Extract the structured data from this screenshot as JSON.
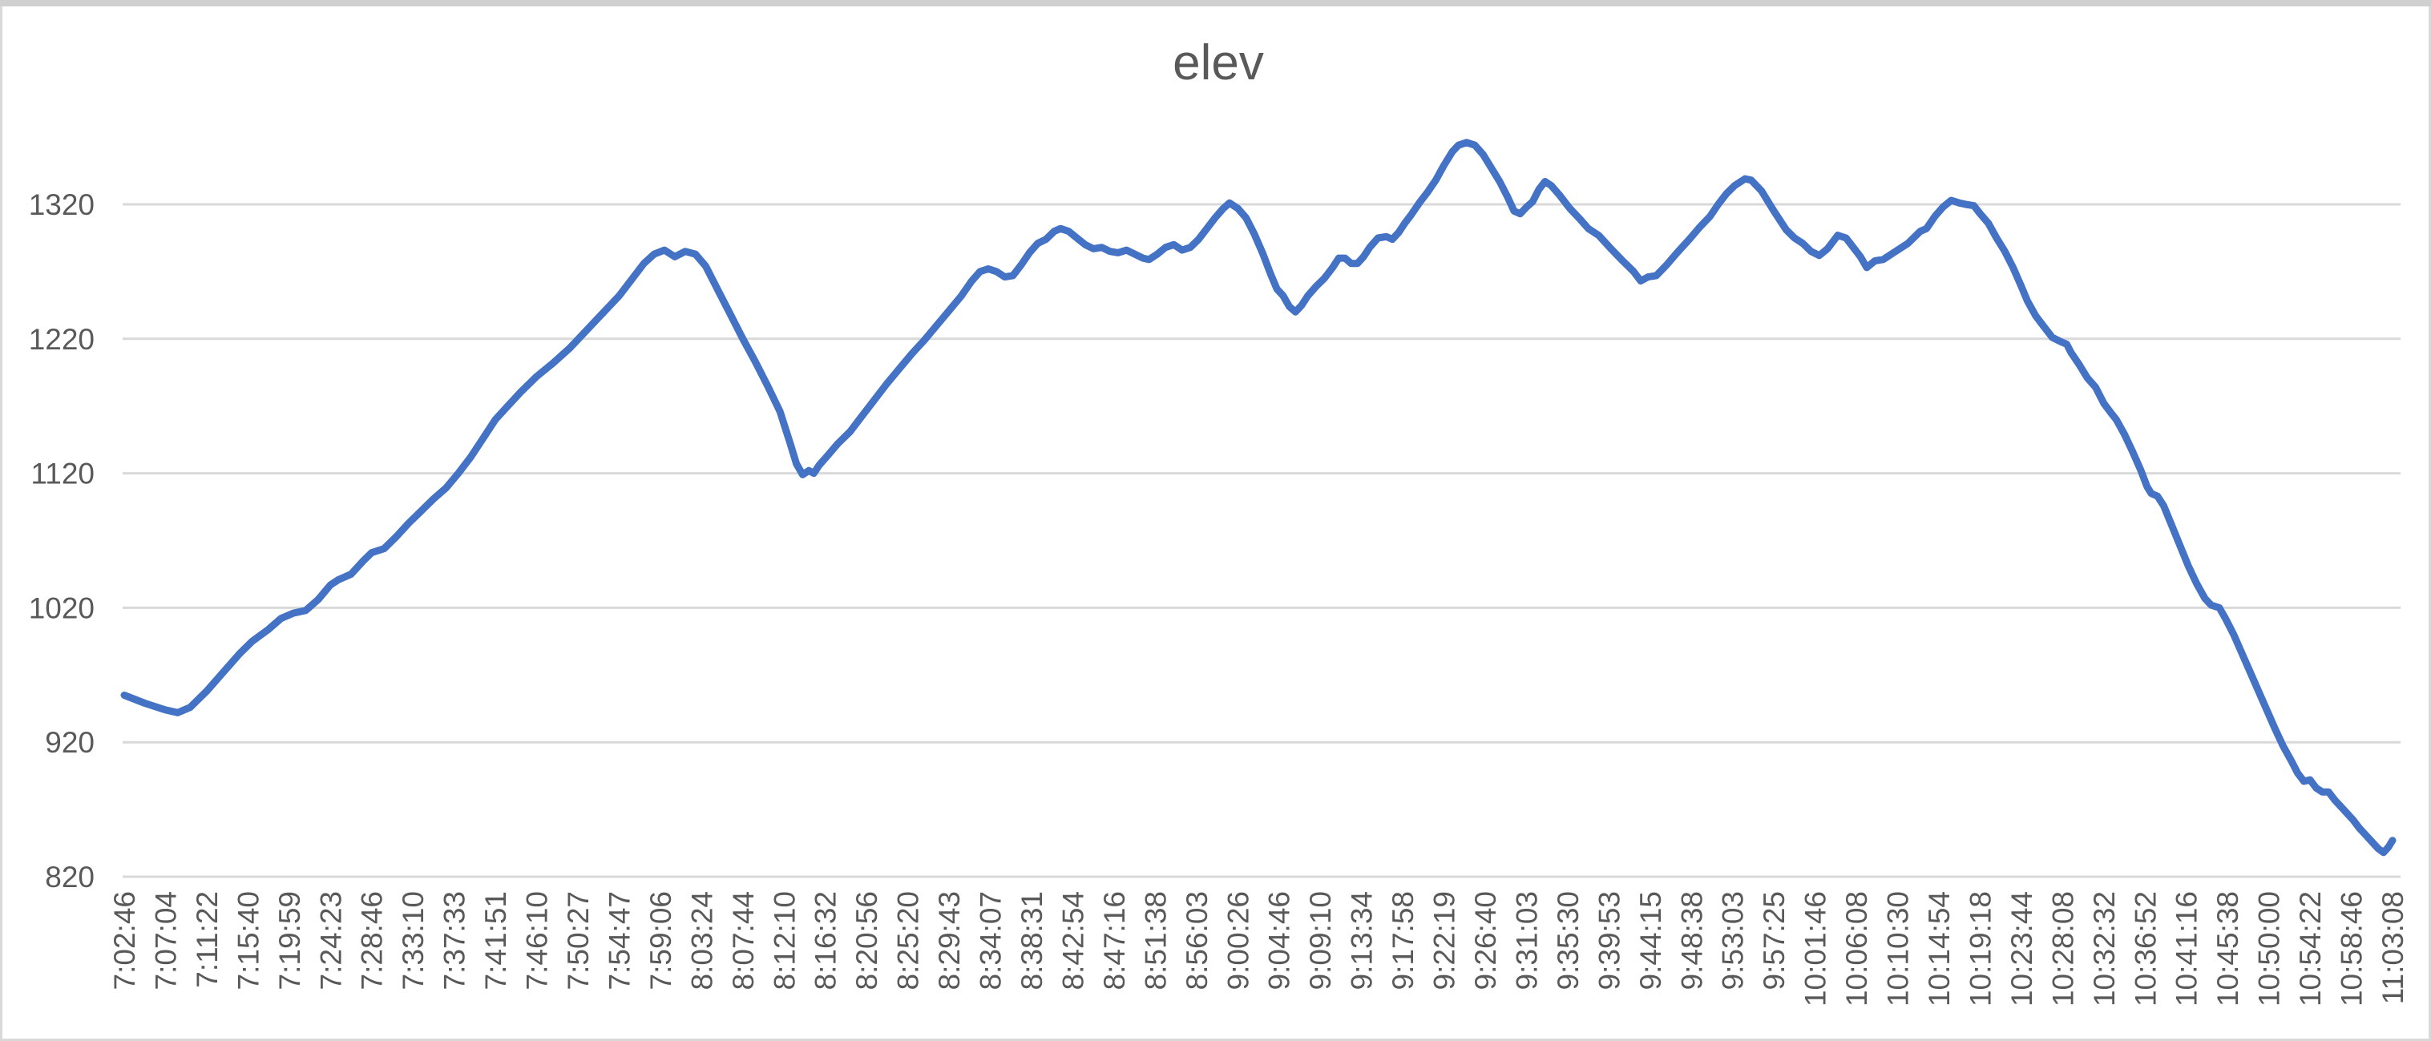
{
  "chart_data": {
    "type": "line",
    "title": "elev",
    "xlabel": "",
    "ylabel": "",
    "x_unit": "time (h:mm:ss)",
    "grid": true,
    "legend": "none",
    "ylim": [
      820,
      1370
    ],
    "y_ticks": [
      1320,
      1220,
      1120,
      1020,
      920,
      820
    ],
    "x_labels": [
      "7:02:46",
      "7:07:04",
      "7:11:22",
      "7:15:40",
      "7:19:59",
      "7:24:23",
      "7:28:46",
      "7:33:10",
      "7:37:33",
      "7:41:51",
      "7:46:10",
      "7:50:27",
      "7:54:47",
      "7:59:06",
      "8:03:24",
      "8:07:44",
      "8:12:10",
      "8:16:32",
      "8:20:56",
      "8:25:20",
      "8:29:43",
      "8:34:07",
      "8:38:31",
      "8:42:54",
      "8:47:16",
      "8:51:38",
      "8:56:03",
      "9:00:26",
      "9:04:46",
      "9:09:10",
      "9:13:34",
      "9:17:58",
      "9:22:19",
      "9:26:40",
      "9:31:03",
      "9:35:30",
      "9:39:53",
      "9:44:15",
      "9:48:38",
      "9:53:03",
      "9:57:25",
      "10:01:46",
      "10:06:08",
      "10:10:30",
      "10:14:54",
      "10:19:18",
      "10:23:44",
      "10:28:08",
      "10:32:32",
      "10:36:52",
      "10:41:16",
      "10:45:38",
      "10:50:00",
      "10:54:22",
      "10:58:46",
      "11:03:08"
    ],
    "series": [
      {
        "name": "elev",
        "color": "#4472C4",
        "points_format": [
          "x_label_index_fractional",
          "elevation"
        ],
        "points": [
          [
            0,
            955
          ],
          [
            0.5,
            949
          ],
          [
            1,
            944
          ],
          [
            1.3,
            942
          ],
          [
            1.6,
            946
          ],
          [
            2,
            958
          ],
          [
            2.4,
            972
          ],
          [
            2.8,
            986
          ],
          [
            3.1,
            995
          ],
          [
            3.5,
            1004
          ],
          [
            3.8,
            1012
          ],
          [
            4.1,
            1016
          ],
          [
            4.4,
            1018
          ],
          [
            4.7,
            1026
          ],
          [
            5,
            1037
          ],
          [
            5.2,
            1041
          ],
          [
            5.5,
            1045
          ],
          [
            5.8,
            1055
          ],
          [
            6,
            1061
          ],
          [
            6.3,
            1064
          ],
          [
            6.6,
            1073
          ],
          [
            6.9,
            1083
          ],
          [
            7.2,
            1092
          ],
          [
            7.5,
            1101
          ],
          [
            7.8,
            1109
          ],
          [
            8.1,
            1120
          ],
          [
            8.4,
            1132
          ],
          [
            8.7,
            1146
          ],
          [
            9,
            1160
          ],
          [
            9.3,
            1170
          ],
          [
            9.6,
            1180
          ],
          [
            10,
            1192
          ],
          [
            10.4,
            1202
          ],
          [
            10.8,
            1213
          ],
          [
            11.2,
            1226
          ],
          [
            11.6,
            1239
          ],
          [
            12,
            1252
          ],
          [
            12.3,
            1264
          ],
          [
            12.6,
            1276
          ],
          [
            12.85,
            1283
          ],
          [
            13.1,
            1286
          ],
          [
            13.35,
            1281
          ],
          [
            13.6,
            1285
          ],
          [
            13.85,
            1283
          ],
          [
            14.1,
            1274
          ],
          [
            14.4,
            1256
          ],
          [
            14.7,
            1238
          ],
          [
            15,
            1220
          ],
          [
            15.3,
            1203
          ],
          [
            15.6,
            1185
          ],
          [
            15.9,
            1166
          ],
          [
            16.15,
            1142
          ],
          [
            16.3,
            1127
          ],
          [
            16.45,
            1119
          ],
          [
            16.6,
            1122
          ],
          [
            16.72,
            1120
          ],
          [
            16.85,
            1126
          ],
          [
            17.05,
            1133
          ],
          [
            17.3,
            1142
          ],
          [
            17.6,
            1151
          ],
          [
            17.9,
            1163
          ],
          [
            18.2,
            1175
          ],
          [
            18.5,
            1187
          ],
          [
            18.8,
            1198
          ],
          [
            19.1,
            1209
          ],
          [
            19.4,
            1219
          ],
          [
            19.7,
            1230
          ],
          [
            20,
            1241
          ],
          [
            20.3,
            1252
          ],
          [
            20.55,
            1263
          ],
          [
            20.75,
            1270
          ],
          [
            20.95,
            1272
          ],
          [
            21.15,
            1270
          ],
          [
            21.35,
            1266
          ],
          [
            21.55,
            1267
          ],
          [
            21.75,
            1275
          ],
          [
            21.95,
            1284
          ],
          [
            22.15,
            1291
          ],
          [
            22.35,
            1294
          ],
          [
            22.55,
            1300
          ],
          [
            22.7,
            1302
          ],
          [
            22.9,
            1300
          ],
          [
            23.1,
            1295
          ],
          [
            23.3,
            1290
          ],
          [
            23.5,
            1287
          ],
          [
            23.7,
            1288
          ],
          [
            23.9,
            1285
          ],
          [
            24.1,
            1284
          ],
          [
            24.3,
            1286
          ],
          [
            24.5,
            1283
          ],
          [
            24.7,
            1280
          ],
          [
            24.85,
            1279
          ],
          [
            25.05,
            1283
          ],
          [
            25.25,
            1288
          ],
          [
            25.45,
            1290
          ],
          [
            25.65,
            1286
          ],
          [
            25.85,
            1288
          ],
          [
            26.05,
            1294
          ],
          [
            26.25,
            1302
          ],
          [
            26.45,
            1310
          ],
          [
            26.65,
            1317
          ],
          [
            26.8,
            1321
          ],
          [
            27,
            1317
          ],
          [
            27.2,
            1310
          ],
          [
            27.4,
            1298
          ],
          [
            27.6,
            1284
          ],
          [
            27.8,
            1268
          ],
          [
            27.95,
            1257
          ],
          [
            28.1,
            1252
          ],
          [
            28.25,
            1244
          ],
          [
            28.4,
            1240
          ],
          [
            28.55,
            1245
          ],
          [
            28.7,
            1252
          ],
          [
            28.9,
            1259
          ],
          [
            29.1,
            1265
          ],
          [
            29.3,
            1273
          ],
          [
            29.45,
            1280
          ],
          [
            29.6,
            1280
          ],
          [
            29.75,
            1276
          ],
          [
            29.9,
            1276
          ],
          [
            30.05,
            1281
          ],
          [
            30.2,
            1288
          ],
          [
            30.4,
            1295
          ],
          [
            30.6,
            1296
          ],
          [
            30.75,
            1294
          ],
          [
            30.9,
            1299
          ],
          [
            31.05,
            1306
          ],
          [
            31.2,
            1312
          ],
          [
            31.4,
            1321
          ],
          [
            31.6,
            1329
          ],
          [
            31.8,
            1338
          ],
          [
            32,
            1349
          ],
          [
            32.2,
            1359
          ],
          [
            32.35,
            1364
          ],
          [
            32.55,
            1366
          ],
          [
            32.75,
            1364
          ],
          [
            32.95,
            1357
          ],
          [
            33.15,
            1347
          ],
          [
            33.35,
            1337
          ],
          [
            33.55,
            1325
          ],
          [
            33.7,
            1315
          ],
          [
            33.85,
            1313
          ],
          [
            34,
            1318
          ],
          [
            34.15,
            1322
          ],
          [
            34.3,
            1331
          ],
          [
            34.45,
            1337
          ],
          [
            34.6,
            1334
          ],
          [
            34.8,
            1327
          ],
          [
            35.05,
            1317
          ],
          [
            35.3,
            1309
          ],
          [
            35.5,
            1302
          ],
          [
            35.6,
            1300
          ],
          [
            35.75,
            1297
          ],
          [
            36.05,
            1287
          ],
          [
            36.3,
            1279
          ],
          [
            36.6,
            1270
          ],
          [
            36.77,
            1263
          ],
          [
            36.95,
            1266
          ],
          [
            37.15,
            1267
          ],
          [
            37.4,
            1275
          ],
          [
            37.65,
            1284
          ],
          [
            37.95,
            1294
          ],
          [
            38.2,
            1303
          ],
          [
            38.45,
            1311
          ],
          [
            38.65,
            1320
          ],
          [
            38.85,
            1328
          ],
          [
            39.05,
            1334
          ],
          [
            39.3,
            1339
          ],
          [
            39.45,
            1338
          ],
          [
            39.7,
            1330
          ],
          [
            40,
            1315
          ],
          [
            40.3,
            1301
          ],
          [
            40.5,
            1295
          ],
          [
            40.7,
            1291
          ],
          [
            40.9,
            1285
          ],
          [
            41.1,
            1282
          ],
          [
            41.3,
            1287
          ],
          [
            41.45,
            1293
          ],
          [
            41.55,
            1297
          ],
          [
            41.75,
            1295
          ],
          [
            41.95,
            1287
          ],
          [
            42.1,
            1281
          ],
          [
            42.25,
            1273
          ],
          [
            42.45,
            1278
          ],
          [
            42.65,
            1279
          ],
          [
            42.9,
            1284
          ],
          [
            43.25,
            1291
          ],
          [
            43.55,
            1300
          ],
          [
            43.7,
            1302
          ],
          [
            43.9,
            1311
          ],
          [
            44.1,
            1318
          ],
          [
            44.3,
            1323
          ],
          [
            44.5,
            1321
          ],
          [
            44.65,
            1320
          ],
          [
            44.85,
            1319
          ],
          [
            45,
            1313
          ],
          [
            45.2,
            1306
          ],
          [
            45.4,
            1295
          ],
          [
            45.6,
            1285
          ],
          [
            45.8,
            1273
          ],
          [
            46,
            1259
          ],
          [
            46.15,
            1248
          ],
          [
            46.35,
            1237
          ],
          [
            46.55,
            1229
          ],
          [
            46.75,
            1221
          ],
          [
            46.95,
            1218
          ],
          [
            47.1,
            1216
          ],
          [
            47.2,
            1210
          ],
          [
            47.4,
            1201
          ],
          [
            47.6,
            1191
          ],
          [
            47.8,
            1184
          ],
          [
            48,
            1172
          ],
          [
            48.17,
            1165
          ],
          [
            48.3,
            1160
          ],
          [
            48.5,
            1149
          ],
          [
            48.7,
            1136
          ],
          [
            48.9,
            1122
          ],
          [
            49.05,
            1110
          ],
          [
            49.15,
            1105
          ],
          [
            49.3,
            1103
          ],
          [
            49.45,
            1096
          ],
          [
            49.65,
            1081
          ],
          [
            49.85,
            1066
          ],
          [
            50.05,
            1051
          ],
          [
            50.25,
            1038
          ],
          [
            50.45,
            1027
          ],
          [
            50.6,
            1022
          ],
          [
            50.8,
            1020
          ],
          [
            50.95,
            1012
          ],
          [
            51.15,
            1000
          ],
          [
            51.35,
            986
          ],
          [
            51.55,
            972
          ],
          [
            51.75,
            958
          ],
          [
            51.95,
            944
          ],
          [
            52.15,
            930
          ],
          [
            52.35,
            917
          ],
          [
            52.55,
            906
          ],
          [
            52.7,
            897
          ],
          [
            52.85,
            891
          ],
          [
            53,
            892
          ],
          [
            53.15,
            886
          ],
          [
            53.3,
            883
          ],
          [
            53.45,
            883
          ],
          [
            53.6,
            877
          ],
          [
            53.75,
            872
          ],
          [
            53.9,
            867
          ],
          [
            54.05,
            862
          ],
          [
            54.2,
            856
          ],
          [
            54.35,
            851
          ],
          [
            54.5,
            846
          ],
          [
            54.65,
            841
          ],
          [
            54.78,
            838
          ],
          [
            54.9,
            842
          ],
          [
            55,
            847
          ]
        ]
      }
    ]
  },
  "colors": {
    "series_line": "#4472C4",
    "gridline": "#D9D9D9",
    "axis_text": "#595959",
    "title_text": "#595959",
    "chart_border": "#D2D2D2",
    "background": "#FFFFFF"
  }
}
